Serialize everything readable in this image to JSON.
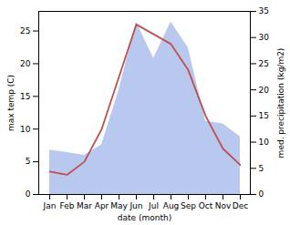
{
  "chart_data": {
    "type": "line",
    "categories": [
      "Jan",
      "Feb",
      "Mar",
      "Apr",
      "May",
      "Jun",
      "Jul",
      "Aug",
      "Sep",
      "Oct",
      "Nov",
      "Dec"
    ],
    "series": [
      {
        "type": "area",
        "axis": "y2",
        "color": "#b8c8ee",
        "values": [
          8.5,
          8.0,
          7.5,
          9.5,
          20.0,
          33.0,
          26.0,
          33.0,
          28.0,
          14.0,
          13.5,
          11.0
        ]
      },
      {
        "type": "line",
        "color": "#c0504d",
        "values": [
          3.5,
          3.0,
          5.0,
          10.0,
          18.0,
          26.0,
          24.5,
          23.0,
          19.0,
          12.0,
          7.0,
          4.5
        ]
      }
    ],
    "xlabel": "date (month)",
    "ylabel": "max temp (C)",
    "y2label": "med. precipitation (kg/m2)",
    "ylim": [
      0,
      28
    ],
    "yticks": [
      0,
      5,
      10,
      15,
      20,
      25
    ],
    "y2lim": [
      0,
      35
    ],
    "y2ticks": [
      0,
      5,
      10,
      15,
      20,
      25,
      30,
      35
    ],
    "grid": false
  }
}
